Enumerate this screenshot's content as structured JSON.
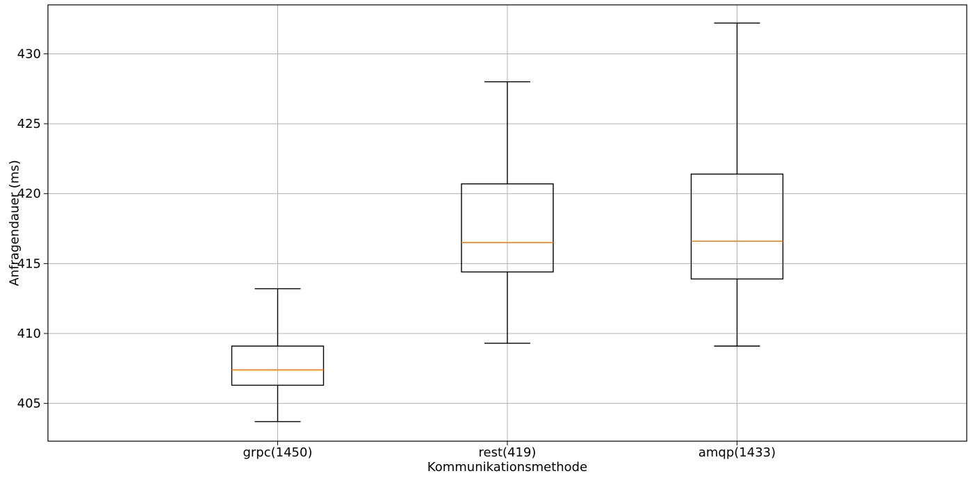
{
  "chart_data": {
    "type": "box",
    "title": "",
    "xlabel": "Kommunikationsmethode",
    "ylabel": "Anfragendauer (ms)",
    "ylim": [
      402.3,
      433.5
    ],
    "yticks": [
      405,
      410,
      415,
      420,
      425,
      430
    ],
    "grid": true,
    "categories": [
      "grpc(1450)",
      "rest(419)",
      "amqp(1433)"
    ],
    "boxes": [
      {
        "whislo": 403.7,
        "q1": 406.3,
        "med": 407.4,
        "q3": 409.1,
        "whishi": 413.2
      },
      {
        "whislo": 409.3,
        "q1": 414.4,
        "med": 416.5,
        "q3": 420.7,
        "whishi": 428.0
      },
      {
        "whislo": 409.1,
        "q1": 413.9,
        "med": 416.6,
        "q3": 421.4,
        "whishi": 432.2
      }
    ],
    "colors": {
      "box": "#000000",
      "median": "#ff7f0e",
      "grid": "#b0b0b0"
    }
  }
}
